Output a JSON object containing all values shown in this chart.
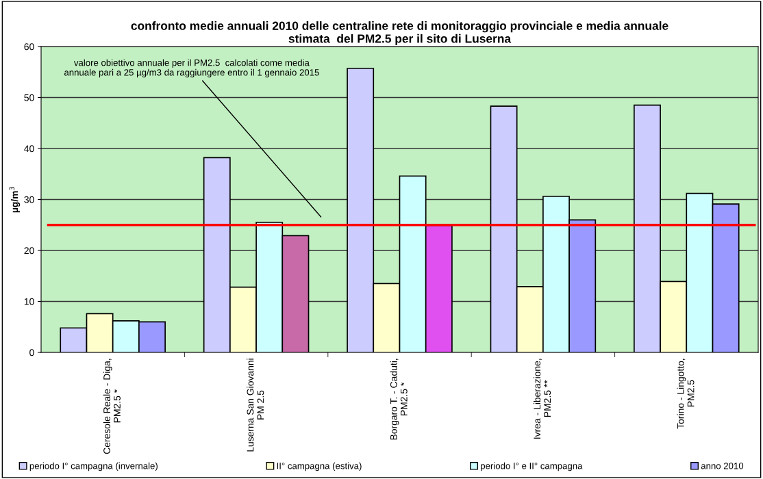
{
  "chart_data": {
    "type": "bar",
    "title": "confronto medie annuali 2010 delle centraline rete di monitoraggio provinciale e media annuale\nstimata  del PM2.5 per il sito di Luserna",
    "ylabel": "µg/m$^{3}$",
    "categories": [
      "Ceresole Reale - Diga,\nPM2.5 *",
      "Luserna San Giovanni\nPM 2.5",
      "Borgaro T. - Caduti,\nPM2.5 *",
      "Ivrea - Liberazione,\nPM2.5 **",
      "Torino - Lingotto,\nPM2.5"
    ],
    "series": [
      {
        "name": "periodo I° campagna (invernale)",
        "color": "#ccccff",
        "values": [
          4.8,
          38.2,
          55.7,
          48.3,
          48.5
        ]
      },
      {
        "name": "II° campagna (estiva)",
        "color": "#ffffcc",
        "values": [
          7.6,
          12.8,
          13.5,
          12.9,
          13.9
        ]
      },
      {
        "name": "periodo I° e II° campagna",
        "color": "#ccffff",
        "values": [
          6.2,
          25.5,
          34.6,
          30.6,
          31.2
        ]
      },
      {
        "name": "anno 2010",
        "color": "#9999ff",
        "colors": [
          "#9999ff",
          "#c86aa8",
          "#e050f0",
          "#9999ff",
          "#9999ff"
        ],
        "values": [
          6.0,
          22.9,
          24.9,
          26.0,
          29.1
        ]
      }
    ],
    "ylim": [
      0,
      60
    ],
    "yticks": [
      0,
      10,
      20,
      30,
      40,
      50,
      60
    ],
    "grid": "y",
    "legend": "bottom",
    "ref_lines": [
      {
        "axis": "y",
        "value": 25,
        "color": "#ff0000"
      }
    ],
    "annotations": [
      "valore obiettivo annuale per il PM2.5  calcolati come media\nannuale pari a 25 µg/m3 da raggiungere entro il 1 gennaio 2015"
    ]
  }
}
